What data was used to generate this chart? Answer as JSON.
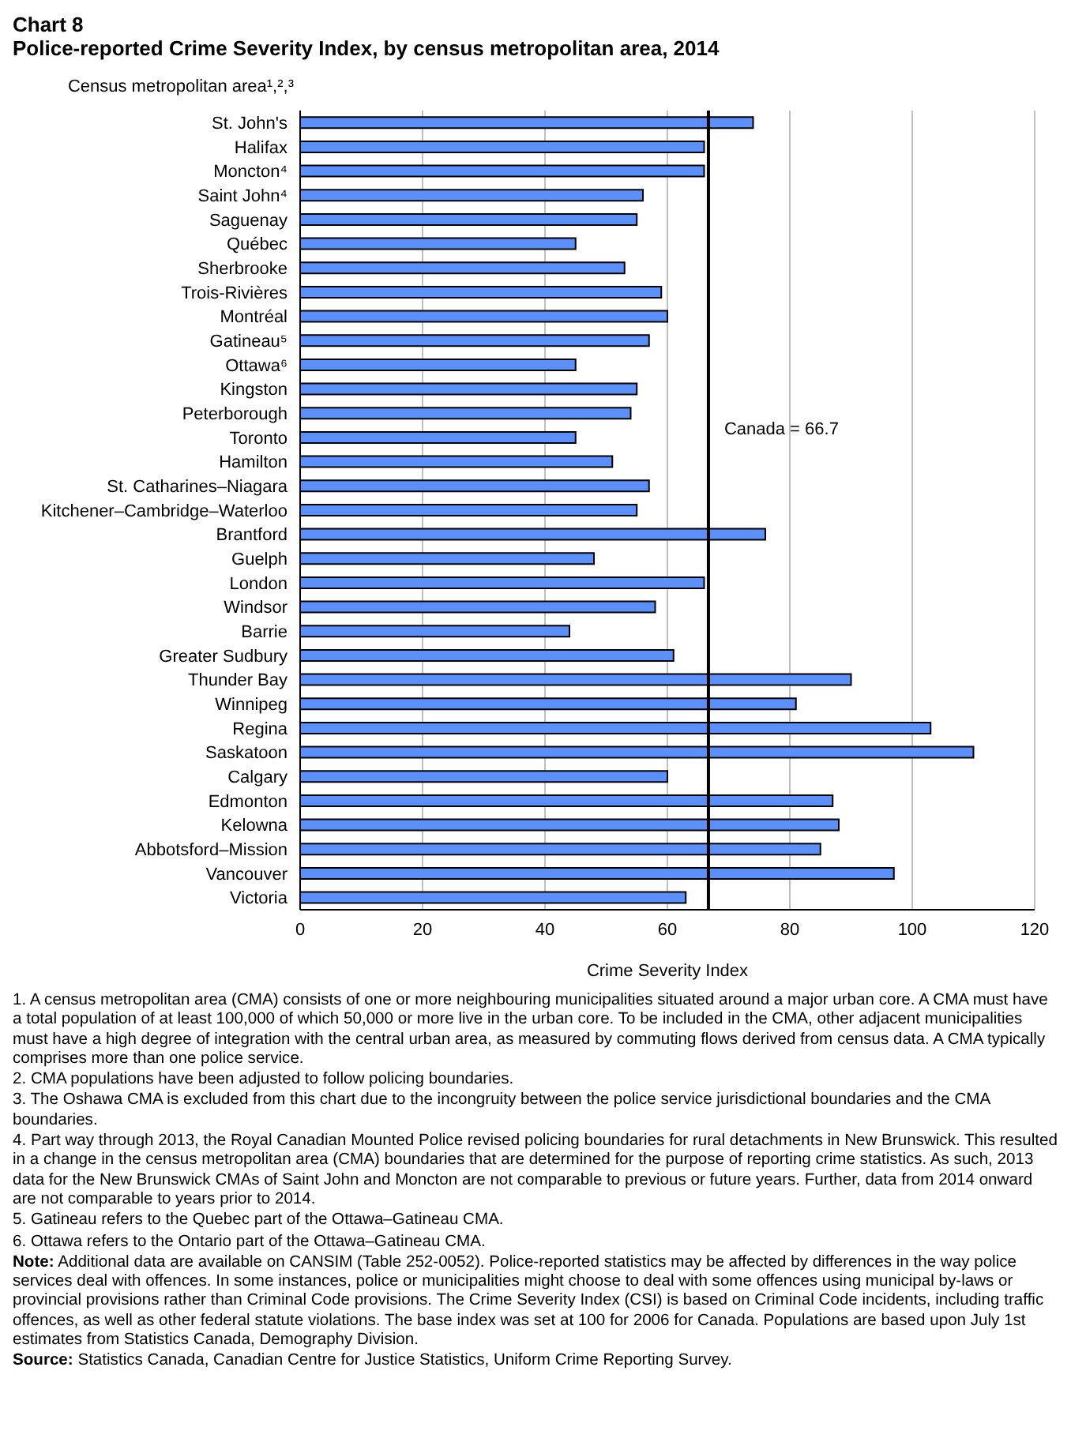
{
  "chart_data": {
    "type": "bar",
    "orientation": "horizontal",
    "title": "Chart 8",
    "subtitle": "Police-reported Crime Severity Index, by census metropolitan area, 2014",
    "ylabel": "Census metropolitan area¹,²,³",
    "xlabel": "Crime Severity Index",
    "categories": [
      "St. John's",
      "Halifax",
      "Moncton⁴",
      "Saint John⁴",
      "Saguenay",
      "Québec",
      "Sherbrooke",
      "Trois-Rivières",
      "Montréal",
      "Gatineau⁵",
      "Ottawa⁶",
      "Kingston",
      "Peterborough",
      "Toronto",
      "Hamilton",
      "St. Catharines–Niagara",
      "Kitchener–Cambridge–Waterloo",
      "Brantford",
      "Guelph",
      "London",
      "Windsor",
      "Barrie",
      "Greater Sudbury",
      "Thunder Bay",
      "Winnipeg",
      "Regina",
      "Saskatoon",
      "Calgary",
      "Edmonton",
      "Kelowna",
      "Abbotsford–Mission",
      "Vancouver",
      "Victoria"
    ],
    "values": [
      74,
      66,
      66,
      56,
      55,
      45,
      53,
      59,
      60,
      57,
      45,
      55,
      54,
      45,
      51,
      57,
      55,
      76,
      48,
      66,
      58,
      44,
      61,
      90,
      81,
      103,
      110,
      60,
      87,
      88,
      85,
      97,
      63
    ],
    "color": "#5b8ff9",
    "xlim": [
      0,
      120
    ],
    "xticks": [
      0,
      20,
      40,
      60,
      80,
      100,
      120
    ],
    "grid": "x",
    "ref_lines": [
      {
        "axis": "x",
        "value": 66.7,
        "label": "Canada = 66.7",
        "color": "#000000"
      }
    ],
    "annotations": [
      "1. A census metropolitan area (CMA) consists of one or more neighbouring municipalities situated around a major urban core. A CMA must have a total population of at least 100,000 of which 50,000 or more live in the urban core. To be included in the CMA, other adjacent municipalities must have a high degree of integration with the central urban area, as measured by commuting flows derived from census data. A CMA typically comprises more than one police service.",
      "2. CMA populations have been adjusted to follow policing boundaries.",
      "3. The Oshawa CMA is excluded from this chart due to the incongruity between the police service jurisdictional boundaries and the CMA boundaries.",
      "4. Part way through 2013, the Royal Canadian Mounted Police revised policing boundaries for rural detachments in New Brunswick. This resulted in a change in the census metropolitan area (CMA) boundaries that are determined for the purpose of reporting crime statistics. As such, 2013 data for the New Brunswick CMAs of Saint John and Moncton are not comparable to previous or future years. Further, data from 2014 onward are not comparable to years prior to 2014.",
      "5. Gatineau refers to the Quebec part of the Ottawa–Gatineau CMA.",
      "6. Ottawa refers to the Ontario part of the Ottawa–Gatineau CMA.",
      "Note: Additional data are available on CANSIM (Table 252-0052). Police-reported statistics may be affected by differences in the way police services deal with offences. In some instances, police or municipalities might choose to deal with some offences using municipal by-laws or provincial provisions rather than Criminal Code provisions. The Crime Severity Index (CSI) is based on Criminal Code incidents, including traffic offences, as well as other federal statute violations. The base index was set at 100 for 2006 for Canada. Populations are based upon July 1st estimates from Statistics Canada, Demography Division.",
      "Source: Statistics Canada, Canadian Centre for Justice Statistics, Uniform Crime Reporting Survey."
    ]
  }
}
